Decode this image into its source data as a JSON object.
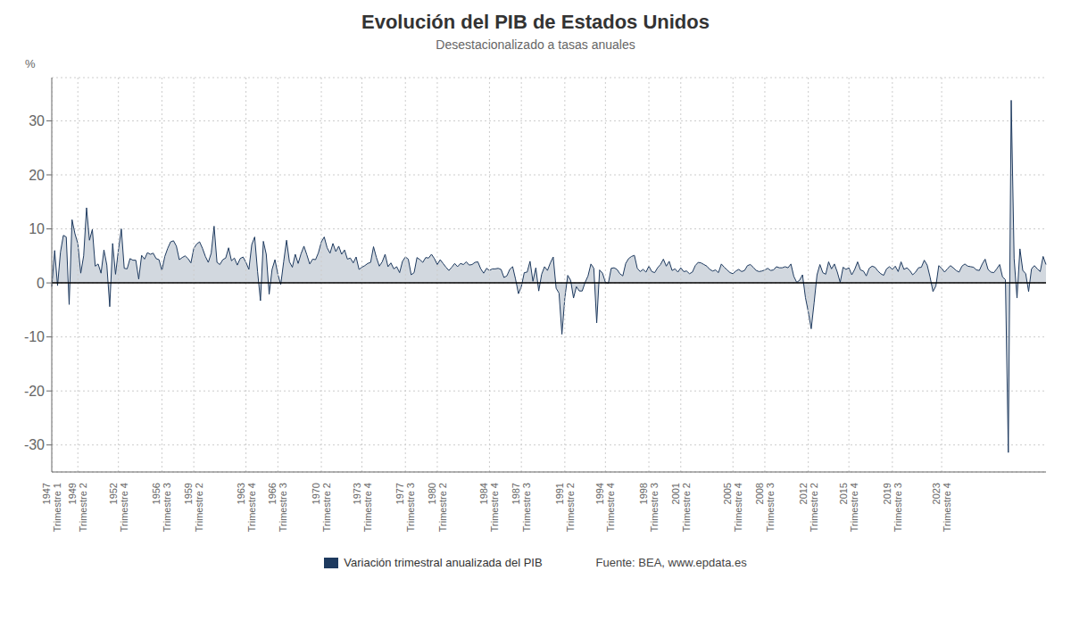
{
  "chart_data": {
    "type": "area",
    "title": "Evolución del PIB de Estados Unidos",
    "subtitle": "Desestacionalizado a tasas anuales",
    "ylabel": "%",
    "annotations": [
      "Fuente: BEA, www.epdata.es"
    ],
    "grid": true,
    "legend": "bottom",
    "ylim": [
      -35,
      38
    ],
    "yticks": [
      -30,
      -20,
      -10,
      0,
      10,
      20,
      30
    ],
    "categories": [
      "1947\nTrimestre 1",
      null,
      null,
      null,
      null,
      null,
      null,
      null,
      null,
      "1949\nTrimestre 2",
      null,
      null,
      null,
      null,
      null,
      null,
      null,
      null,
      null,
      null,
      null,
      null,
      null,
      "1952\nTrimestre 4",
      null,
      null,
      null,
      null,
      null,
      null,
      null,
      null,
      null,
      null,
      null,
      null,
      null,
      null,
      "1956\nTrimestre 3",
      null,
      null,
      null,
      null,
      null,
      null,
      null,
      null,
      null,
      null,
      "1959\nTrimestre 2",
      null,
      null,
      null,
      null,
      null,
      null,
      null,
      null,
      null,
      null,
      null,
      null,
      null,
      null,
      null,
      null,
      null,
      "1963\nTrimestre 4",
      null,
      null,
      null,
      null,
      null,
      null,
      null,
      null,
      null,
      null,
      "1966\nTrimestre 3",
      null,
      null,
      null,
      null,
      null,
      null,
      null,
      null,
      null,
      null,
      null,
      null,
      null,
      null,
      "1970\nTrimestre 2",
      null,
      null,
      null,
      null,
      null,
      null,
      null,
      null,
      null,
      null,
      null,
      null,
      null,
      "1973\nTrimestre 4",
      null,
      null,
      null,
      null,
      null,
      null,
      null,
      null,
      null,
      null,
      null,
      null,
      null,
      null,
      "1977\nTrimestre 3",
      null,
      null,
      null,
      null,
      null,
      null,
      null,
      null,
      null,
      null,
      "1980\nTrimestre 2",
      null,
      null,
      null,
      null,
      null,
      null,
      null,
      null,
      null,
      null,
      null,
      null,
      null,
      null,
      null,
      null,
      null,
      "1984\nTrimestre 4",
      null,
      null,
      null,
      null,
      null,
      null,
      null,
      null,
      null,
      null,
      "1987\nTrimestre 3",
      null,
      null,
      null,
      null,
      null,
      null,
      null,
      null,
      null,
      null,
      null,
      null,
      null,
      null,
      "1991\nTrimestre 2",
      null,
      null,
      null,
      null,
      null,
      null,
      null,
      null,
      null,
      null,
      null,
      null,
      null,
      "1994\nTrimestre 4",
      null,
      null,
      null,
      null,
      null,
      null,
      null,
      null,
      null,
      null,
      null,
      null,
      null,
      null,
      "1998\nTrimestre 3",
      null,
      null,
      null,
      null,
      null,
      null,
      null,
      null,
      null,
      null,
      "2001\nTrimestre 2",
      null,
      null,
      null,
      null,
      null,
      null,
      null,
      null,
      null,
      null,
      null,
      null,
      null,
      null,
      null,
      null,
      null,
      "2005\nTrimestre 4",
      null,
      null,
      null,
      null,
      null,
      null,
      null,
      null,
      null,
      null,
      "2008\nTrimestre 3",
      null,
      null,
      null,
      null,
      null,
      null,
      null,
      null,
      null,
      null,
      null,
      null,
      null,
      null,
      "2012\nTrimestre 2",
      null,
      null,
      null,
      null,
      null,
      null,
      null,
      null,
      null,
      null,
      null,
      null,
      null,
      "2015\nTrimestre 4",
      null,
      null,
      null,
      null,
      null,
      null,
      null,
      null,
      null,
      null,
      null,
      null,
      null,
      null,
      "2019\nTrimestre 3",
      null,
      null,
      null,
      null,
      null,
      null,
      null,
      null,
      null,
      null,
      null,
      null,
      null,
      null,
      null,
      null,
      "2023\nTrimestre 4",
      null,
      null,
      null,
      null,
      null,
      null,
      null,
      null,
      null,
      null,
      null,
      null,
      null,
      null,
      null,
      null,
      null,
      null,
      null,
      null,
      null,
      null,
      null,
      null,
      null,
      null,
      null,
      null,
      null,
      null,
      null,
      null,
      null,
      null,
      null,
      null
    ],
    "series": [
      {
        "name": "Variación trimestral anualizada del PIB",
        "color": "#1e3a5f",
        "values": [
          -0.7,
          6.0,
          -0.5,
          5.7,
          8.8,
          8.5,
          -4.0,
          11.7,
          9.1,
          7.3,
          1.8,
          5.0,
          13.9,
          7.9,
          9.9,
          3.1,
          3.5,
          1.8,
          6.1,
          3.3,
          -4.4,
          7.3,
          1.6,
          6.1,
          10.0,
          2.7,
          2.6,
          4.5,
          4.2,
          4.2,
          0.7,
          5.1,
          4.4,
          5.6,
          5.3,
          5.5,
          4.5,
          4.3,
          2.3,
          4.9,
          6.4,
          7.6,
          7.8,
          6.8,
          4.3,
          4.7,
          5.0,
          4.5,
          3.7,
          6.4,
          7.2,
          7.6,
          6.4,
          4.9,
          3.8,
          5.5,
          10.5,
          3.8,
          3.4,
          4.3,
          4.6,
          6.5,
          4.1,
          4.6,
          3.3,
          4.5,
          4.8,
          3.8,
          2.5,
          7.1,
          8.5,
          2.1,
          -3.3,
          7.7,
          5.3,
          -2.1,
          2.5,
          4.3,
          1.6,
          -0.3,
          3.9,
          7.9,
          3.9,
          2.9,
          5.3,
          3.6,
          5.4,
          6.8,
          5.2,
          3.5,
          4.4,
          4.3,
          5.6,
          7.6,
          8.5,
          6.5,
          5.5,
          7.3,
          5.8,
          6.8,
          5.3,
          6.1,
          4.4,
          4.6,
          3.7,
          4.8,
          2.5,
          2.9,
          3.2,
          3.6,
          3.8,
          6.7,
          4.7,
          3.1,
          3.9,
          5.3,
          3.0,
          3.7,
          2.6,
          3.0,
          1.9,
          4.0,
          4.8,
          4.4,
          1.5,
          1.9,
          4.7,
          4.3,
          3.8,
          4.7,
          4.6,
          5.3,
          4.5,
          3.4,
          4.3,
          3.6,
          2.9,
          2.3,
          2.9,
          3.6,
          3.0,
          3.6,
          3.4,
          3.9,
          3.3,
          3.4,
          3.8,
          3.9,
          2.6,
          1.8,
          2.7,
          2.3,
          2.6,
          2.6,
          2.7,
          2.5,
          1.0,
          1.3,
          2.5,
          3.0,
          0.7,
          -2.0,
          -0.7,
          1.9,
          2.0,
          4.0,
          0.3,
          2.8,
          -1.5,
          1.6,
          3.0,
          2.3,
          3.7,
          4.8,
          -1.0,
          -1.9,
          -9.5,
          -2.8,
          1.4,
          0.5,
          -2.8,
          -0.7,
          -1.5,
          -1.5,
          0.1,
          1.3,
          3.5,
          2.7,
          -7.4,
          2.4,
          1.8,
          0.1,
          -0.1,
          2.7,
          2.8,
          2.5,
          1.7,
          1.3,
          3.6,
          4.5,
          4.9,
          5.1,
          2.7,
          2.1,
          2.5,
          2.0,
          3.1,
          2.1,
          1.9,
          2.8,
          3.4,
          4.4,
          3.1,
          4.0,
          2.3,
          2.6,
          2.0,
          2.8,
          2.1,
          2.2,
          1.7,
          2.0,
          3.2,
          3.8,
          3.7,
          3.4,
          3.1,
          2.5,
          2.2,
          2.4,
          1.9,
          3.5,
          2.9,
          2.4,
          1.9,
          1.7,
          2.2,
          2.5,
          2.1,
          2.3,
          3.2,
          3.4,
          2.9,
          2.3,
          2.1,
          2.2,
          2.4,
          2.7,
          2.3,
          2.4,
          3.0,
          2.8,
          2.8,
          3.0,
          2.8,
          3.5,
          1.2,
          0.1,
          0.5,
          1.5,
          -2.7,
          -5.4,
          -8.5,
          -3.7,
          1.5,
          3.4,
          1.9,
          1.6,
          3.9,
          2.6,
          3.5,
          2.0,
          0.1,
          2.9,
          2.5,
          2.8,
          1.5,
          2.5,
          3.9,
          2.4,
          2.2,
          1.3,
          2.7,
          3.1,
          2.9,
          2.2,
          1.7,
          1.4,
          2.6,
          3.0,
          2.5,
          3.1,
          2.1,
          3.9,
          2.5,
          2.8,
          2.3,
          1.5,
          2.0,
          2.8,
          2.9,
          4.2,
          3.3,
          1.1,
          -1.6,
          -0.6,
          3.2,
          2.7,
          2.0,
          2.6,
          3.2,
          2.8,
          2.3,
          2.0,
          3.1,
          3.5,
          3.1,
          3.0,
          2.9,
          2.4,
          2.3,
          3.5,
          4.4,
          2.5,
          2.0,
          1.9,
          2.6,
          3.4,
          1.1,
          0.6,
          -31.4,
          33.8,
          4.5,
          -2.8,
          6.3,
          2.3,
          1.7,
          -1.6,
          2.6,
          3.2,
          2.6,
          2.1,
          4.9,
          3.4
        ]
      }
    ]
  }
}
